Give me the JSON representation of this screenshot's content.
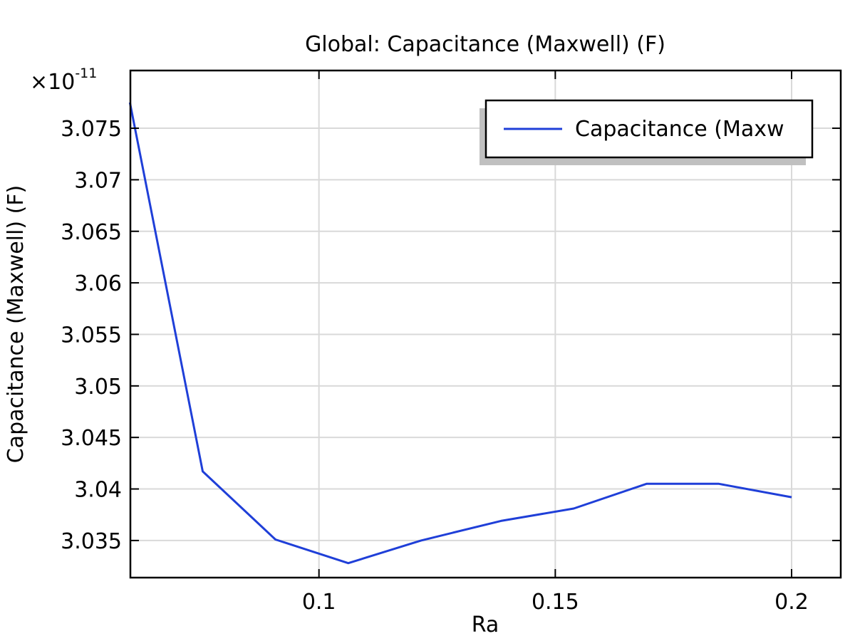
{
  "chart_data": {
    "type": "line",
    "title": "Global: Capacitance (Maxwell) (F)",
    "xlabel": "Ra",
    "ylabel": "Capacitance (Maxwell) (F)",
    "y_multiplier": {
      "prefix": "×10",
      "exponent": "-11"
    },
    "xlim": [
      0.0601,
      0.2104
    ],
    "ylim": [
      3.0314,
      3.0806
    ],
    "x_ticks": [
      {
        "value": 0.1,
        "label": "0.1"
      },
      {
        "value": 0.15,
        "label": "0.15"
      },
      {
        "value": 0.2,
        "label": "0.2"
      }
    ],
    "y_ticks": [
      {
        "value": 3.035,
        "label": "3.035"
      },
      {
        "value": 3.04,
        "label": "3.04"
      },
      {
        "value": 3.045,
        "label": "3.045"
      },
      {
        "value": 3.05,
        "label": "3.05"
      },
      {
        "value": 3.055,
        "label": "3.055"
      },
      {
        "value": 3.06,
        "label": "3.06"
      },
      {
        "value": 3.065,
        "label": "3.065"
      },
      {
        "value": 3.07,
        "label": "3.07"
      },
      {
        "value": 3.075,
        "label": "3.075"
      }
    ],
    "grid": true,
    "legend_position": "top-right",
    "legend_label": "Capacitance (Maxw",
    "series": [
      {
        "name": "Capacitance (Maxwell)",
        "color": "#1f3fd8",
        "x": [
          0.06,
          0.0754,
          0.0908,
          0.1062,
          0.1216,
          0.1385,
          0.1539,
          0.1693,
          0.1846,
          0.2
        ],
        "y": [
          3.0775,
          3.0417,
          3.0351,
          3.0328,
          3.035,
          3.0369,
          3.0381,
          3.0405,
          3.0405,
          3.0392
        ]
      }
    ]
  }
}
